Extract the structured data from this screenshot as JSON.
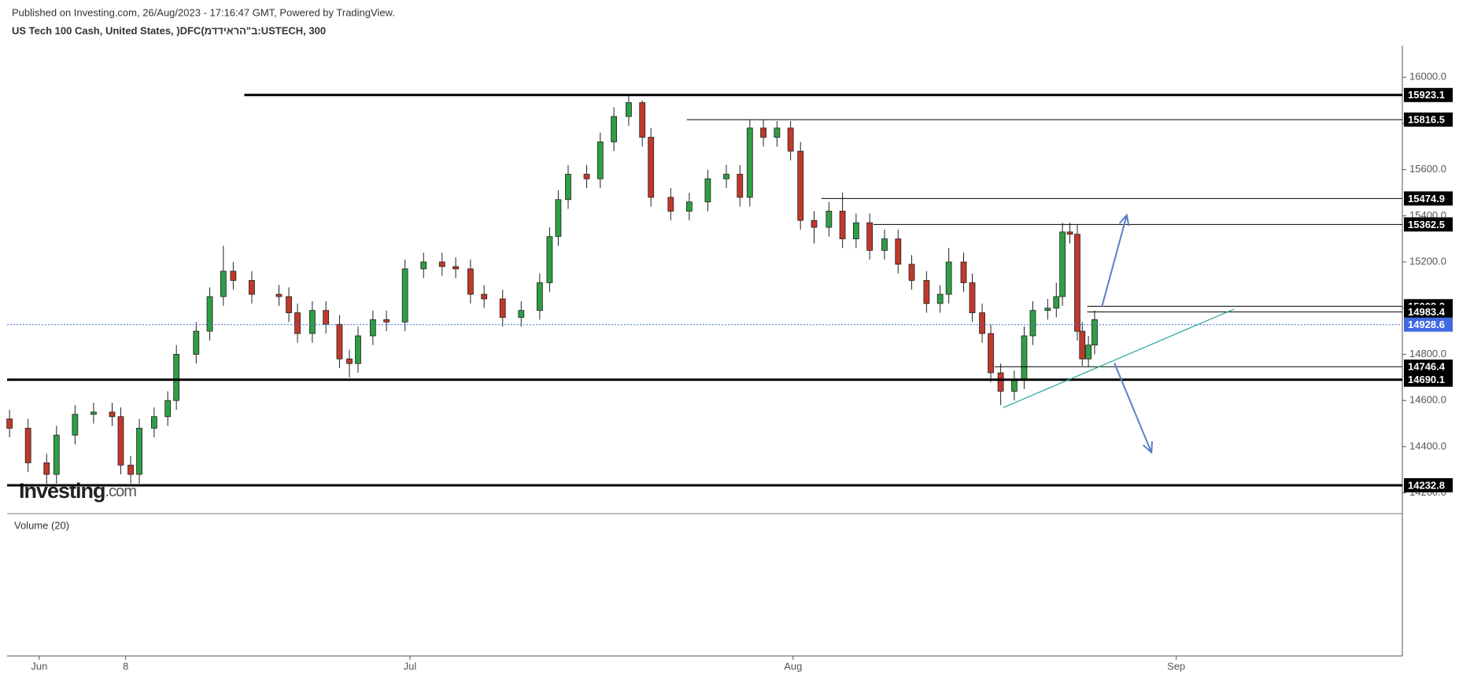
{
  "chart_data": {
    "type": "candlestick",
    "published": "Published on Investing.com, 26/Aug/2023 - 17:16:47 GMT, Powered by TradingView.",
    "title": "US Tech 100 Cash, United States, )DFC(ב\"הראידדמ:USTECH, 300",
    "watermark": "Investing",
    "watermark_suffix": ".com",
    "volume_label": "Volume (20)",
    "up_color": "#2f9e44",
    "down_color": "#c0392b",
    "x": [
      -2.4,
      -0.9,
      0.6,
      1.4,
      2.9,
      4.4,
      5.9,
      6.6,
      7.4,
      8.1,
      9.3,
      10.4,
      11.1,
      12.7,
      13.8,
      14.9,
      15.7,
      17.2,
      19.4,
      20.2,
      20.9,
      22.1,
      23.2,
      24.3,
      25.1,
      25.8,
      27.0,
      28.1,
      29.6,
      31.1,
      32.6,
      33.7,
      34.9,
      36.0,
      37.5,
      39.0,
      40.5,
      41.3,
      42.0,
      42.8,
      44.3,
      45.4,
      46.5,
      47.7,
      48.8,
      49.5,
      51.1,
      52.6,
      54.1,
      55.6,
      56.7,
      57.5,
      58.6,
      59.7,
      60.8,
      61.6,
      62.7,
      63.9,
      65.0,
      66.1,
      67.2,
      68.4,
      69.5,
      70.6,
      71.8,
      72.9,
      73.6,
      74.8,
      75.5,
      76.3,
      77.0,
      77.8,
      78.9,
      79.7,
      80.4,
      81.6,
      82.3,
      82.8,
      83.4,
      84.0,
      84.4,
      84.9,
      85.4
    ],
    "open": [
      14520,
      14480,
      14330,
      14280,
      14450,
      14540,
      14550,
      14530,
      14320,
      14280,
      14480,
      14530,
      14600,
      14800,
      14900,
      15050,
      15160,
      15120,
      15060,
      15050,
      14980,
      14890,
      14990,
      14930,
      14780,
      14760,
      14880,
      14950,
      14940,
      15170,
      15200,
      15180,
      15170,
      15060,
      15040,
      14960,
      14990,
      15110,
      15310,
      15470,
      15580,
      15560,
      15720,
      15830,
      15890,
      15740,
      15480,
      15420,
      15460,
      15560,
      15580,
      15480,
      15780,
      15740,
      15780,
      15680,
      15380,
      15350,
      15420,
      15300,
      15370,
      15250,
      15300,
      15190,
      15120,
      15020,
      15060,
      15200,
      15110,
      14980,
      14890,
      14720,
      14640,
      14690,
      14880,
      14990,
      15000,
      15050,
      15330,
      15320,
      14900,
      14780,
      14840
    ],
    "high": [
      14560,
      14520,
      14370,
      14490,
      14580,
      14590,
      14590,
      14570,
      14360,
      14520,
      14570,
      14640,
      14840,
      14940,
      15090,
      15270,
      15200,
      15160,
      15100,
      15090,
      15020,
      15030,
      15030,
      14970,
      14820,
      14920,
      14990,
      14990,
      15210,
      15240,
      15240,
      15220,
      15210,
      15100,
      15080,
      15030,
      15150,
      15350,
      15510,
      15620,
      15620,
      15760,
      15870,
      15923,
      15900,
      15780,
      15520,
      15500,
      15600,
      15620,
      15620,
      15816,
      15816,
      15810,
      15810,
      15720,
      15420,
      15460,
      15500,
      15410,
      15410,
      15340,
      15340,
      15230,
      15160,
      15100,
      15260,
      15240,
      15150,
      15020,
      14930,
      14760,
      14730,
      14920,
      15030,
      15040,
      15110,
      15370,
      15370,
      15360,
      14940,
      14880,
      14990
    ],
    "low": [
      14440,
      14290,
      14240,
      14240,
      14410,
      14500,
      14490,
      14280,
      14240,
      14240,
      14440,
      14490,
      14560,
      14760,
      14860,
      15010,
      15080,
      15020,
      15010,
      14940,
      14850,
      14850,
      14890,
      14740,
      14700,
      14720,
      14840,
      14900,
      14900,
      15130,
      15140,
      15130,
      15020,
      15000,
      14920,
      14920,
      14950,
      15070,
      15270,
      15430,
      15520,
      15520,
      15680,
      15790,
      15700,
      15440,
      15380,
      15380,
      15420,
      15520,
      15440,
      15440,
      15700,
      15700,
      15640,
      15340,
      15280,
      15310,
      15260,
      15260,
      15210,
      15210,
      15150,
      15080,
      14980,
      14980,
      15020,
      15070,
      14940,
      14850,
      14680,
      14580,
      14600,
      14650,
      14840,
      14950,
      14960,
      15010,
      15280,
      14860,
      14750,
      14746,
      14800
    ],
    "close": [
      14480,
      14330,
      14280,
      14450,
      14540,
      14550,
      14530,
      14320,
      14280,
      14480,
      14530,
      14600,
      14800,
      14900,
      15050,
      15160,
      15120,
      15060,
      15050,
      14980,
      14890,
      14990,
      14930,
      14780,
      14760,
      14880,
      14950,
      14940,
      15170,
      15200,
      15180,
      15170,
      15060,
      15040,
      14960,
      14990,
      15110,
      15310,
      15470,
      15580,
      15560,
      15720,
      15830,
      15890,
      15740,
      15480,
      15420,
      15460,
      15560,
      15580,
      15480,
      15780,
      15740,
      15780,
      15680,
      15380,
      15350,
      15420,
      15300,
      15370,
      15250,
      15300,
      15190,
      15120,
      15020,
      15060,
      15200,
      15110,
      14980,
      14890,
      14720,
      14640,
      14690,
      14880,
      14990,
      15000,
      15050,
      15330,
      15320,
      14900,
      14780,
      14840,
      14950
    ],
    "xlim": [
      -2.6,
      110.3
    ],
    "xticks": [
      {
        "value": 0,
        "label": "Jun"
      },
      {
        "value": 7,
        "label": "8"
      },
      {
        "value": 30,
        "label": "Jul"
      },
      {
        "value": 61,
        "label": "Aug"
      },
      {
        "value": 92,
        "label": "Sep"
      }
    ],
    "ylim": [
      14110,
      16137
    ],
    "yticks": [
      {
        "value": 14200,
        "label": "14200.0"
      },
      {
        "value": 14400,
        "label": "14400.0"
      },
      {
        "value": 14600,
        "label": "14600.0"
      },
      {
        "value": 14800,
        "label": "14800.0"
      },
      {
        "value": 15000,
        "label": "15000.0"
      },
      {
        "value": 15200,
        "label": "15200.0"
      },
      {
        "value": 15400,
        "label": "15400.0"
      },
      {
        "value": 15600,
        "label": "15600.0"
      },
      {
        "value": 15800,
        "label": "15800.0"
      },
      {
        "value": 16000,
        "label": "16000.0"
      }
    ],
    "levels": [
      {
        "value": 15923.1,
        "start": 16.6,
        "style": "thick"
      },
      {
        "value": 15816.5,
        "start": 52.4,
        "style": "thin"
      },
      {
        "value": 15474.9,
        "start": 63.3,
        "style": "thin"
      },
      {
        "value": 15362.5,
        "start": 67.5,
        "style": "thin"
      },
      {
        "value": 15008.3,
        "start": 84.8,
        "style": "thin"
      },
      {
        "value": 14983.4,
        "start": 84.8,
        "style": "thin"
      },
      {
        "value": 14928.6,
        "start": -2.6,
        "style": "current",
        "color": "#4169e1"
      },
      {
        "value": 14746.4,
        "start": 77.3,
        "style": "thin"
      },
      {
        "value": 14690.1,
        "start": -2.6,
        "style": "thick"
      },
      {
        "value": 14232.8,
        "start": -2.6,
        "style": "thick"
      }
    ],
    "trendline": {
      "x1": 78.0,
      "y1": 14569,
      "x2": 96.7,
      "y2": 14996,
      "color": "#26a69a"
    },
    "arrows": [
      {
        "x1": 86.0,
        "y1": 15008,
        "x2": 88.0,
        "y2": 15403,
        "color": "#5b7fc4"
      },
      {
        "x1": 87.0,
        "y1": 14762,
        "x2": 90.0,
        "y2": 14375,
        "color": "#5b7fc4"
      }
    ]
  }
}
